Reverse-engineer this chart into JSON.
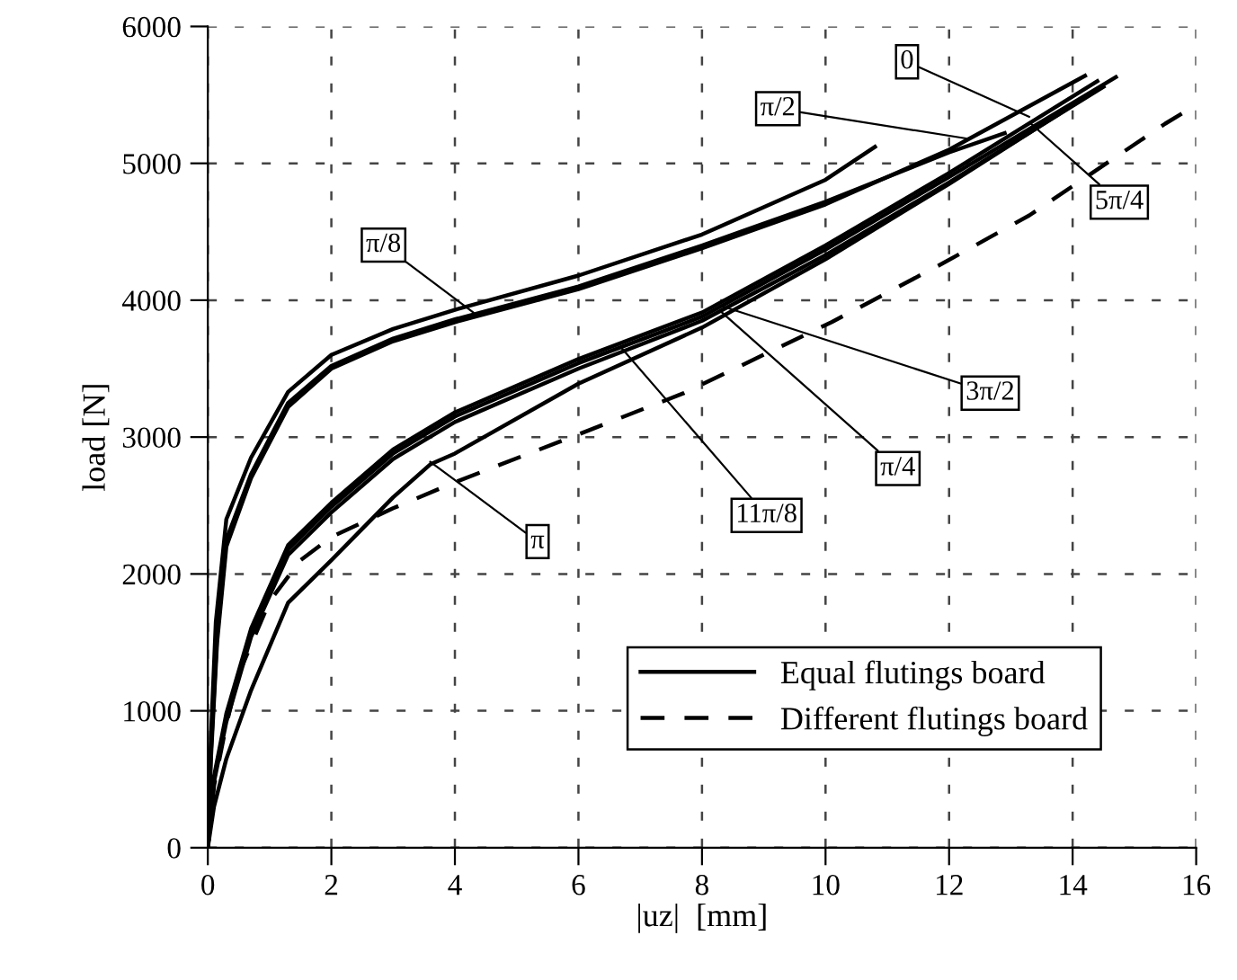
{
  "chart_data": {
    "type": "line",
    "xlabel": "|uz|  [mm]",
    "ylabel": "load [N]",
    "xlim": [
      0,
      16
    ],
    "xticks": [
      0,
      2,
      4,
      6,
      8,
      10,
      12,
      14,
      16
    ],
    "ylim": [
      0,
      6000
    ],
    "yticks": [
      0,
      1000,
      2000,
      3000,
      4000,
      5000,
      6000
    ],
    "grid": true,
    "legend": "bottom right",
    "marker": "none",
    "series": [
      {
        "name": "Equal flutings board",
        "color": "#000000",
        "line_style": "solid",
        "x": [
          0,
          0.05,
          0.13,
          0.3,
          0.7,
          1.3,
          2,
          3,
          4,
          6,
          8,
          10,
          10.8
        ],
        "values": [
          0,
          800,
          1650,
          2400,
          2850,
          3330,
          3600,
          3790,
          3930,
          4180,
          4480,
          4880,
          5120
        ]
      },
      {
        "color": "#000000",
        "line_style": "solid",
        "x": [
          0,
          0.05,
          0.15,
          0.3,
          0.7,
          1.3,
          2,
          3,
          4,
          6,
          8,
          10,
          12,
          12.9
        ],
        "values": [
          0,
          700,
          1550,
          2250,
          2730,
          3250,
          3520,
          3720,
          3860,
          4100,
          4400,
          4720,
          5080,
          5220
        ]
      },
      {
        "color": "#000000",
        "line_style": "solid",
        "x": [
          0,
          0.05,
          0.15,
          0.3,
          0.7,
          1.3,
          2,
          3,
          4,
          6,
          8,
          10,
          12,
          14.2
        ],
        "values": [
          0,
          650,
          1500,
          2200,
          2700,
          3220,
          3500,
          3700,
          3840,
          4080,
          4380,
          4700,
          5100,
          5640
        ]
      },
      {
        "color": "#000000",
        "line_style": "solid",
        "x": [
          0,
          0.1,
          0.3,
          0.7,
          1.3,
          2,
          3,
          4,
          6,
          8,
          10,
          12,
          14.7
        ],
        "values": [
          0,
          500,
          950,
          1580,
          2180,
          2490,
          2880,
          3150,
          3540,
          3880,
          4370,
          4900,
          5630
        ]
      },
      {
        "color": "#000000",
        "line_style": "solid",
        "x": [
          0,
          0.1,
          0.3,
          0.7,
          1.3,
          2,
          3,
          4,
          6,
          8,
          10,
          12,
          14.5
        ],
        "values": [
          0,
          480,
          920,
          1540,
          2140,
          2450,
          2840,
          3110,
          3500,
          3850,
          4330,
          4860,
          5560
        ]
      },
      {
        "color": "#000000",
        "line_style": "solid",
        "x": [
          0,
          0.1,
          0.3,
          0.7,
          1.3,
          2,
          3,
          4,
          6,
          8,
          10,
          12,
          14.4
        ],
        "values": [
          0,
          520,
          980,
          1600,
          2210,
          2520,
          2910,
          3180,
          3570,
          3910,
          4400,
          4930,
          5600
        ]
      },
      {
        "color": "#000000",
        "line_style": "solid",
        "x": [
          0,
          0.1,
          0.3,
          0.7,
          1.3,
          2,
          3,
          3.6,
          4,
          6,
          8,
          10,
          12,
          14.4
        ],
        "values": [
          0,
          300,
          650,
          1150,
          1790,
          2100,
          2560,
          2800,
          2880,
          3390,
          3800,
          4300,
          4850,
          5540
        ]
      },
      {
        "name": "Different flutings board",
        "color": "#000000",
        "line_style": "dashed",
        "x": [
          0,
          0.1,
          0.3,
          0.5,
          1,
          1.5,
          2,
          3,
          4,
          6,
          7.7,
          10.1,
          11.9,
          13.3,
          15.5,
          15.9
        ],
        "values": [
          0,
          450,
          900,
          1270,
          1800,
          2100,
          2270,
          2480,
          2670,
          3020,
          3320,
          3840,
          4270,
          4620,
          5290,
          5400
        ]
      }
    ],
    "annotations": [
      {
        "text": "0",
        "x": 13.3,
        "y": 5340
      },
      {
        "text": "π/2",
        "x": 12.3,
        "y": 5180
      },
      {
        "text": "5π/4",
        "x": 13.3,
        "y": 5300
      },
      {
        "text": "π/8",
        "x": 4.3,
        "y": 3910
      },
      {
        "text": "3π/2",
        "x": 8.3,
        "y": 3960
      },
      {
        "text": "π/4",
        "x": 8.3,
        "y": 3920
      },
      {
        "text": "11π/8",
        "x": 6.7,
        "y": 3650
      },
      {
        "text": "π",
        "x": 3.6,
        "y": 2820
      }
    ]
  }
}
